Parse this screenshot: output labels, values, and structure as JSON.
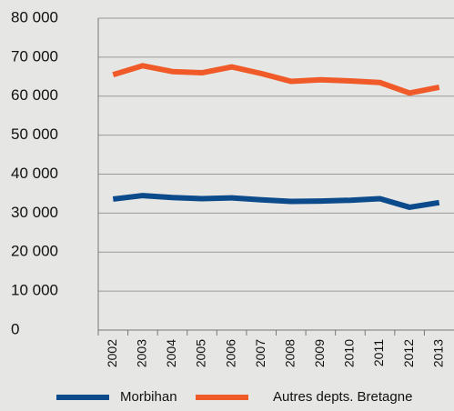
{
  "chart_data": {
    "type": "line",
    "categories": [
      "2002",
      "2003",
      "2004",
      "2005",
      "2006",
      "2007",
      "2008",
      "2009",
      "2010",
      "2011",
      "2012",
      "2013"
    ],
    "series": [
      {
        "name": "Morbihan",
        "color": "#0b4a8b",
        "values": [
          33600,
          34500,
          34000,
          33700,
          33900,
          33400,
          33000,
          33100,
          33300,
          33700,
          31500,
          32700
        ]
      },
      {
        "name": "Autres depts. Bretagne",
        "color": "#f05a28",
        "values": [
          65500,
          67800,
          66300,
          66000,
          67500,
          65800,
          63800,
          64200,
          63900,
          63500,
          60800,
          62300
        ]
      }
    ],
    "ylim": [
      0,
      80000
    ],
    "yticks": [
      {
        "value": 0,
        "label": "0"
      },
      {
        "value": 10000,
        "label": "10 000"
      },
      {
        "value": 20000,
        "label": "20 000"
      },
      {
        "value": 30000,
        "label": "30 000"
      },
      {
        "value": 40000,
        "label": "40 000"
      },
      {
        "value": 50000,
        "label": "50 000"
      },
      {
        "value": 60000,
        "label": "60 000"
      },
      {
        "value": 70000,
        "label": "70 000"
      },
      {
        "value": 80000,
        "label": "80 000"
      }
    ],
    "grid": true,
    "legend": "bottom"
  }
}
